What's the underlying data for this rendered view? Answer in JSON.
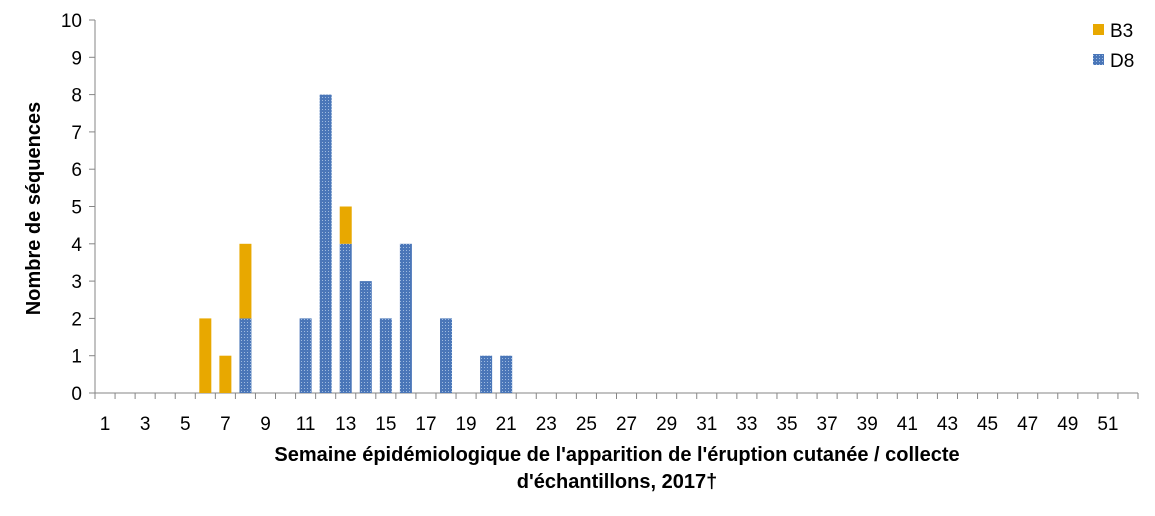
{
  "chart_data": {
    "type": "bar",
    "stacked": true,
    "title": "",
    "xlabel_lines": [
      "Semaine épidémiologique de l'apparition de l'éruption cutanée / collecte",
      "d'échantillons, 2017†"
    ],
    "ylabel": "Nombre de séquences",
    "ylim": [
      0,
      10
    ],
    "yticks": [
      0,
      1,
      2,
      3,
      4,
      5,
      6,
      7,
      8,
      9,
      10
    ],
    "xlim": [
      1,
      52
    ],
    "xtick_labels": [
      "1",
      "3",
      "5",
      "7",
      "9",
      "11",
      "13",
      "15",
      "17",
      "19",
      "21",
      "23",
      "25",
      "27",
      "29",
      "31",
      "33",
      "35",
      "37",
      "39",
      "41",
      "43",
      "45",
      "47",
      "49",
      "51"
    ],
    "grid": false,
    "legend_position": "top-right",
    "series": [
      {
        "name": "B3",
        "color": "#E8A800",
        "pattern": "solid",
        "points": [
          {
            "week": 6,
            "value": 2
          },
          {
            "week": 7,
            "value": 1
          },
          {
            "week": 8,
            "value": 2
          },
          {
            "week": 13,
            "value": 1
          }
        ]
      },
      {
        "name": "D8",
        "color": "#4A76B8",
        "pattern": "dotted",
        "points": [
          {
            "week": 8,
            "value": 2
          },
          {
            "week": 11,
            "value": 2
          },
          {
            "week": 12,
            "value": 8
          },
          {
            "week": 13,
            "value": 4
          },
          {
            "week": 14,
            "value": 3
          },
          {
            "week": 15,
            "value": 2
          },
          {
            "week": 16,
            "value": 4
          },
          {
            "week": 18,
            "value": 2
          },
          {
            "week": 20,
            "value": 1
          },
          {
            "week": 21,
            "value": 1
          }
        ]
      }
    ]
  }
}
